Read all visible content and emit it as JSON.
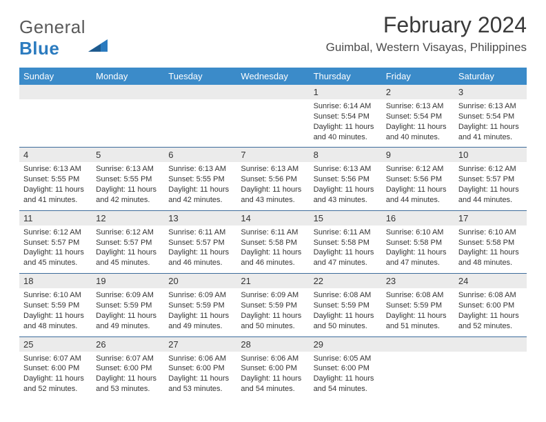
{
  "logo": {
    "text1": "General",
    "text2": "Blue"
  },
  "header": {
    "month_title": "February 2024",
    "location": "Guimbal, Western Visayas, Philippines"
  },
  "day_headers": [
    "Sunday",
    "Monday",
    "Tuesday",
    "Wednesday",
    "Thursday",
    "Friday",
    "Saturday"
  ],
  "colors": {
    "header_bg": "#3b8bc9",
    "header_text": "#ffffff",
    "daynum_bg": "#ebebeb",
    "row_border": "#3b6a9a",
    "page_bg": "#ffffff",
    "text": "#333333",
    "logo_gray": "#5a5a5a",
    "logo_blue": "#2b7bbf"
  },
  "typography": {
    "month_title_size": 32,
    "location_size": 17,
    "day_header_size": 13,
    "day_num_size": 13,
    "day_info_size": 11,
    "font_family": "Arial"
  },
  "weeks": [
    [
      null,
      null,
      null,
      null,
      {
        "n": "1",
        "sunrise": "Sunrise: 6:14 AM",
        "sunset": "Sunset: 5:54 PM",
        "daylight1": "Daylight: 11 hours",
        "daylight2": "and 40 minutes."
      },
      {
        "n": "2",
        "sunrise": "Sunrise: 6:13 AM",
        "sunset": "Sunset: 5:54 PM",
        "daylight1": "Daylight: 11 hours",
        "daylight2": "and 40 minutes."
      },
      {
        "n": "3",
        "sunrise": "Sunrise: 6:13 AM",
        "sunset": "Sunset: 5:54 PM",
        "daylight1": "Daylight: 11 hours",
        "daylight2": "and 41 minutes."
      }
    ],
    [
      {
        "n": "4",
        "sunrise": "Sunrise: 6:13 AM",
        "sunset": "Sunset: 5:55 PM",
        "daylight1": "Daylight: 11 hours",
        "daylight2": "and 41 minutes."
      },
      {
        "n": "5",
        "sunrise": "Sunrise: 6:13 AM",
        "sunset": "Sunset: 5:55 PM",
        "daylight1": "Daylight: 11 hours",
        "daylight2": "and 42 minutes."
      },
      {
        "n": "6",
        "sunrise": "Sunrise: 6:13 AM",
        "sunset": "Sunset: 5:55 PM",
        "daylight1": "Daylight: 11 hours",
        "daylight2": "and 42 minutes."
      },
      {
        "n": "7",
        "sunrise": "Sunrise: 6:13 AM",
        "sunset": "Sunset: 5:56 PM",
        "daylight1": "Daylight: 11 hours",
        "daylight2": "and 43 minutes."
      },
      {
        "n": "8",
        "sunrise": "Sunrise: 6:13 AM",
        "sunset": "Sunset: 5:56 PM",
        "daylight1": "Daylight: 11 hours",
        "daylight2": "and 43 minutes."
      },
      {
        "n": "9",
        "sunrise": "Sunrise: 6:12 AM",
        "sunset": "Sunset: 5:56 PM",
        "daylight1": "Daylight: 11 hours",
        "daylight2": "and 44 minutes."
      },
      {
        "n": "10",
        "sunrise": "Sunrise: 6:12 AM",
        "sunset": "Sunset: 5:57 PM",
        "daylight1": "Daylight: 11 hours",
        "daylight2": "and 44 minutes."
      }
    ],
    [
      {
        "n": "11",
        "sunrise": "Sunrise: 6:12 AM",
        "sunset": "Sunset: 5:57 PM",
        "daylight1": "Daylight: 11 hours",
        "daylight2": "and 45 minutes."
      },
      {
        "n": "12",
        "sunrise": "Sunrise: 6:12 AM",
        "sunset": "Sunset: 5:57 PM",
        "daylight1": "Daylight: 11 hours",
        "daylight2": "and 45 minutes."
      },
      {
        "n": "13",
        "sunrise": "Sunrise: 6:11 AM",
        "sunset": "Sunset: 5:57 PM",
        "daylight1": "Daylight: 11 hours",
        "daylight2": "and 46 minutes."
      },
      {
        "n": "14",
        "sunrise": "Sunrise: 6:11 AM",
        "sunset": "Sunset: 5:58 PM",
        "daylight1": "Daylight: 11 hours",
        "daylight2": "and 46 minutes."
      },
      {
        "n": "15",
        "sunrise": "Sunrise: 6:11 AM",
        "sunset": "Sunset: 5:58 PM",
        "daylight1": "Daylight: 11 hours",
        "daylight2": "and 47 minutes."
      },
      {
        "n": "16",
        "sunrise": "Sunrise: 6:10 AM",
        "sunset": "Sunset: 5:58 PM",
        "daylight1": "Daylight: 11 hours",
        "daylight2": "and 47 minutes."
      },
      {
        "n": "17",
        "sunrise": "Sunrise: 6:10 AM",
        "sunset": "Sunset: 5:58 PM",
        "daylight1": "Daylight: 11 hours",
        "daylight2": "and 48 minutes."
      }
    ],
    [
      {
        "n": "18",
        "sunrise": "Sunrise: 6:10 AM",
        "sunset": "Sunset: 5:59 PM",
        "daylight1": "Daylight: 11 hours",
        "daylight2": "and 48 minutes."
      },
      {
        "n": "19",
        "sunrise": "Sunrise: 6:09 AM",
        "sunset": "Sunset: 5:59 PM",
        "daylight1": "Daylight: 11 hours",
        "daylight2": "and 49 minutes."
      },
      {
        "n": "20",
        "sunrise": "Sunrise: 6:09 AM",
        "sunset": "Sunset: 5:59 PM",
        "daylight1": "Daylight: 11 hours",
        "daylight2": "and 49 minutes."
      },
      {
        "n": "21",
        "sunrise": "Sunrise: 6:09 AM",
        "sunset": "Sunset: 5:59 PM",
        "daylight1": "Daylight: 11 hours",
        "daylight2": "and 50 minutes."
      },
      {
        "n": "22",
        "sunrise": "Sunrise: 6:08 AM",
        "sunset": "Sunset: 5:59 PM",
        "daylight1": "Daylight: 11 hours",
        "daylight2": "and 50 minutes."
      },
      {
        "n": "23",
        "sunrise": "Sunrise: 6:08 AM",
        "sunset": "Sunset: 5:59 PM",
        "daylight1": "Daylight: 11 hours",
        "daylight2": "and 51 minutes."
      },
      {
        "n": "24",
        "sunrise": "Sunrise: 6:08 AM",
        "sunset": "Sunset: 6:00 PM",
        "daylight1": "Daylight: 11 hours",
        "daylight2": "and 52 minutes."
      }
    ],
    [
      {
        "n": "25",
        "sunrise": "Sunrise: 6:07 AM",
        "sunset": "Sunset: 6:00 PM",
        "daylight1": "Daylight: 11 hours",
        "daylight2": "and 52 minutes."
      },
      {
        "n": "26",
        "sunrise": "Sunrise: 6:07 AM",
        "sunset": "Sunset: 6:00 PM",
        "daylight1": "Daylight: 11 hours",
        "daylight2": "and 53 minutes."
      },
      {
        "n": "27",
        "sunrise": "Sunrise: 6:06 AM",
        "sunset": "Sunset: 6:00 PM",
        "daylight1": "Daylight: 11 hours",
        "daylight2": "and 53 minutes."
      },
      {
        "n": "28",
        "sunrise": "Sunrise: 6:06 AM",
        "sunset": "Sunset: 6:00 PM",
        "daylight1": "Daylight: 11 hours",
        "daylight2": "and 54 minutes."
      },
      {
        "n": "29",
        "sunrise": "Sunrise: 6:05 AM",
        "sunset": "Sunset: 6:00 PM",
        "daylight1": "Daylight: 11 hours",
        "daylight2": "and 54 minutes."
      },
      null,
      null
    ]
  ]
}
